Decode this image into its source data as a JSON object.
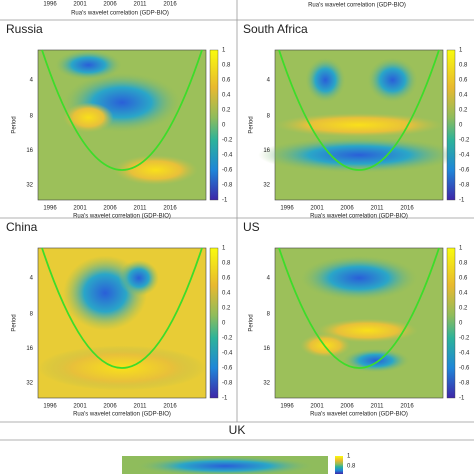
{
  "top_strip": {
    "xticks": [
      "1996",
      "2001",
      "2006",
      "2011",
      "2016"
    ],
    "xlabel": "Rua's wavelet correlation (GDP-BIO)",
    "xlabel_right": "Rua's wavelet correlation (GDP-BIO)"
  },
  "panels": [
    {
      "title": "Russia",
      "ylabel": "Period",
      "yticks": [
        "4",
        "8",
        "16",
        "32"
      ],
      "xticks": [
        "1996",
        "2001",
        "2006",
        "2011",
        "2016"
      ],
      "xlabel": "Rua's wavelet correlation (GDP-BIO)",
      "colorbar_ticks": [
        "1",
        "0.8",
        "0.6",
        "0.4",
        "0.2",
        "0",
        "-0.2",
        "-0.4",
        "-0.6",
        "-0.8",
        "-1"
      ]
    },
    {
      "title": "South Africa",
      "ylabel": "Period",
      "yticks": [
        "4",
        "8",
        "16",
        "32"
      ],
      "xticks": [
        "1996",
        "2001",
        "2006",
        "2011",
        "2016"
      ],
      "xlabel": "Rua's wavelet correlation (GDP-BIO)",
      "colorbar_ticks": [
        "1",
        "0.8",
        "0.6",
        "0.4",
        "0.2",
        "0",
        "-0.2",
        "-0.4",
        "-0.6",
        "-0.8",
        "-1"
      ]
    },
    {
      "title": "China",
      "ylabel": "Period",
      "yticks": [
        "4",
        "8",
        "16",
        "32"
      ],
      "xticks": [
        "1996",
        "2001",
        "2006",
        "2011",
        "2016"
      ],
      "xlabel": "Rua's wavelet correlation (GDP-BIO)",
      "colorbar_ticks": [
        "1",
        "0.8",
        "0.6",
        "0.4",
        "0.2",
        "0",
        "-0.2",
        "-0.4",
        "-0.6",
        "-0.8",
        "-1"
      ]
    },
    {
      "title": "US",
      "ylabel": "Period",
      "yticks": [
        "4",
        "8",
        "16",
        "32"
      ],
      "xticks": [
        "1996",
        "2001",
        "2006",
        "2011",
        "2016"
      ],
      "xlabel": "Rua's wavelet correlation (GDP-BIO)",
      "colorbar_ticks": [
        "1",
        "0.8",
        "0.6",
        "0.4",
        "0.2",
        "0",
        "-0.2",
        "-0.4",
        "-0.6",
        "-0.8",
        "-1"
      ]
    }
  ],
  "uk": {
    "title": "UK",
    "colorbar_ticks": [
      "1",
      "0.8"
    ]
  }
}
